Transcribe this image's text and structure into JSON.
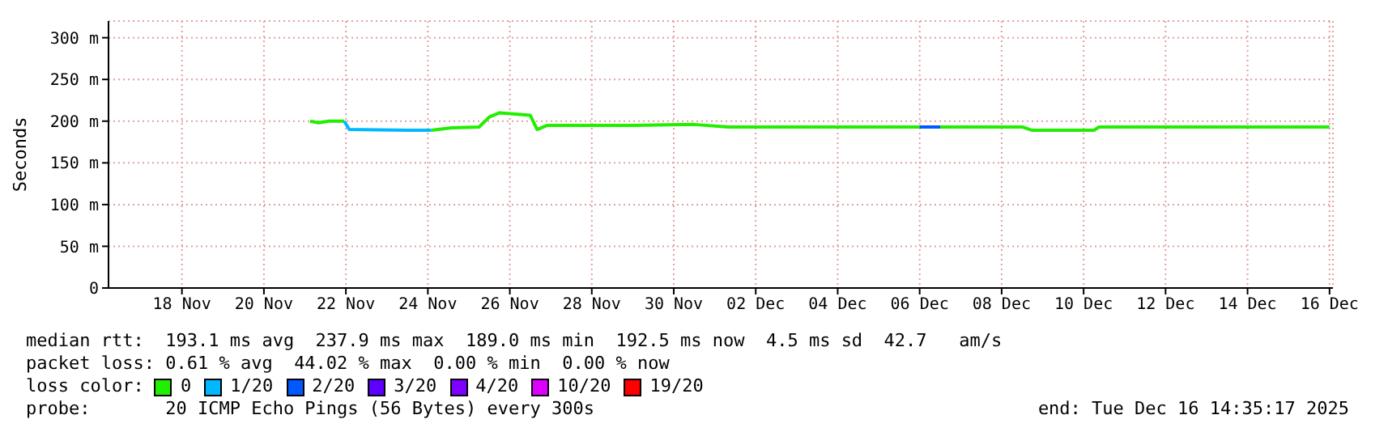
{
  "chart_data": {
    "type": "line",
    "ylabel": "Seconds",
    "legend_title": "loss color:",
    "legend": "bottom",
    "grid": true,
    "x": [
      "2025-11-21T03:00",
      "2025-11-21T08:00",
      "2025-11-21T14:00",
      "2025-11-21T23:00",
      "2025-11-22T02:00",
      "2025-11-23T12:00",
      "2025-11-24T02:00",
      "2025-11-24T14:00",
      "2025-11-25T06:00",
      "2025-11-25T12:00",
      "2025-11-25T18:00",
      "2025-11-26T12:00",
      "2025-11-26T16:00",
      "2025-11-26T22:00",
      "2025-11-29T00:00",
      "2025-11-30T12:00",
      "2025-12-01T08:00",
      "2025-12-05T12:00",
      "2025-12-06T00:00",
      "2025-12-06T12:00",
      "2025-12-08T12:00",
      "2025-12-08T18:00",
      "2025-12-10T06:00",
      "2025-12-10T09:00",
      "2025-12-14T18:00",
      "2025-12-15T00:00",
      "2025-12-15T18:00",
      "2025-12-16T00:00"
    ],
    "series": [
      {
        "name": "0",
        "color": "#22ee00",
        "values": [
          200,
          198,
          200,
          200,
          null,
          null,
          189,
          192,
          193,
          205,
          210,
          207,
          190,
          195,
          195,
          196,
          193,
          193,
          193,
          193,
          193,
          189,
          189,
          193,
          193,
          193,
          193,
          193
        ]
      },
      {
        "name": "1/20",
        "color": "#00b8ff",
        "values": [
          null,
          null,
          null,
          200,
          190,
          189,
          189,
          null,
          null,
          null,
          null,
          null,
          null,
          null,
          null,
          null,
          null,
          null,
          null,
          null,
          null,
          null,
          null,
          null,
          null,
          null,
          null,
          null
        ]
      },
      {
        "name": "2/20",
        "color": "#0059ff",
        "values": [
          null,
          null,
          null,
          null,
          null,
          null,
          null,
          null,
          null,
          null,
          null,
          null,
          null,
          null,
          null,
          null,
          null,
          null,
          193,
          193,
          null,
          null,
          null,
          null,
          null,
          null,
          null,
          null
        ]
      },
      {
        "name": "3/20",
        "color": "#5e00ff",
        "values": [
          null,
          null,
          null,
          null,
          null,
          null,
          null,
          null,
          null,
          null,
          null,
          null,
          null,
          null,
          null,
          null,
          null,
          null,
          null,
          null,
          null,
          null,
          null,
          null,
          null,
          null,
          null,
          null
        ]
      },
      {
        "name": "4/20",
        "color": "#7e00ff",
        "values": [
          null,
          null,
          null,
          null,
          null,
          null,
          null,
          null,
          null,
          null,
          null,
          null,
          null,
          null,
          null,
          null,
          null,
          null,
          null,
          null,
          null,
          null,
          null,
          null,
          null,
          null,
          null,
          null
        ]
      },
      {
        "name": "10/20",
        "color": "#dd00ff",
        "values": [
          null,
          null,
          null,
          null,
          null,
          null,
          null,
          null,
          null,
          null,
          null,
          null,
          null,
          null,
          null,
          null,
          null,
          null,
          null,
          null,
          null,
          null,
          null,
          null,
          null,
          null,
          null,
          null
        ]
      },
      {
        "name": "19/20",
        "color": "#ff0000",
        "values": [
          null,
          null,
          null,
          null,
          null,
          null,
          null,
          null,
          null,
          null,
          null,
          null,
          null,
          null,
          null,
          null,
          null,
          null,
          null,
          null,
          null,
          null,
          null,
          null,
          null,
          null,
          null,
          null
        ]
      }
    ],
    "xlim": [
      "2025-11-16T05:00",
      "2025-12-16T02:00"
    ],
    "xticks": [
      {
        "value": "2025-11-18",
        "label": "18 Nov"
      },
      {
        "value": "2025-11-20",
        "label": "20 Nov"
      },
      {
        "value": "2025-11-22",
        "label": "22 Nov"
      },
      {
        "value": "2025-11-24",
        "label": "24 Nov"
      },
      {
        "value": "2025-11-26",
        "label": "26 Nov"
      },
      {
        "value": "2025-11-28",
        "label": "28 Nov"
      },
      {
        "value": "2025-11-30",
        "label": "30 Nov"
      },
      {
        "value": "2025-12-02",
        "label": "02 Dec"
      },
      {
        "value": "2025-12-04",
        "label": "04 Dec"
      },
      {
        "value": "2025-12-06",
        "label": "06 Dec"
      },
      {
        "value": "2025-12-08",
        "label": "08 Dec"
      },
      {
        "value": "2025-12-10",
        "label": "10 Dec"
      },
      {
        "value": "2025-12-12",
        "label": "12 Dec"
      },
      {
        "value": "2025-12-14",
        "label": "14 Dec"
      },
      {
        "value": "2025-12-16",
        "label": "16 Dec"
      }
    ],
    "ylim": [
      0,
      320
    ],
    "yticks": [
      0,
      {
        "value": 50,
        "label": "50 m"
      },
      {
        "value": 100,
        "label": "100 m"
      },
      {
        "value": 150,
        "label": "150 m"
      },
      {
        "value": 200,
        "label": "200 m"
      },
      {
        "value": 250,
        "label": "250 m"
      },
      {
        "value": 300,
        "label": "300 m"
      }
    ],
    "annotations": [
      "median rtt:  193.1 ms avg  237.9 ms max  189.0 ms min  192.5 ms now  4.5 ms sd  42.7   am/s",
      "packet loss: 0.61 % avg  44.02 % max  0.00 % min  0.00 % now",
      "probe:       20 ICMP Echo Pings (56 Bytes) every 300s",
      "end: Tue Dec 16 14:35:17 2025"
    ]
  }
}
